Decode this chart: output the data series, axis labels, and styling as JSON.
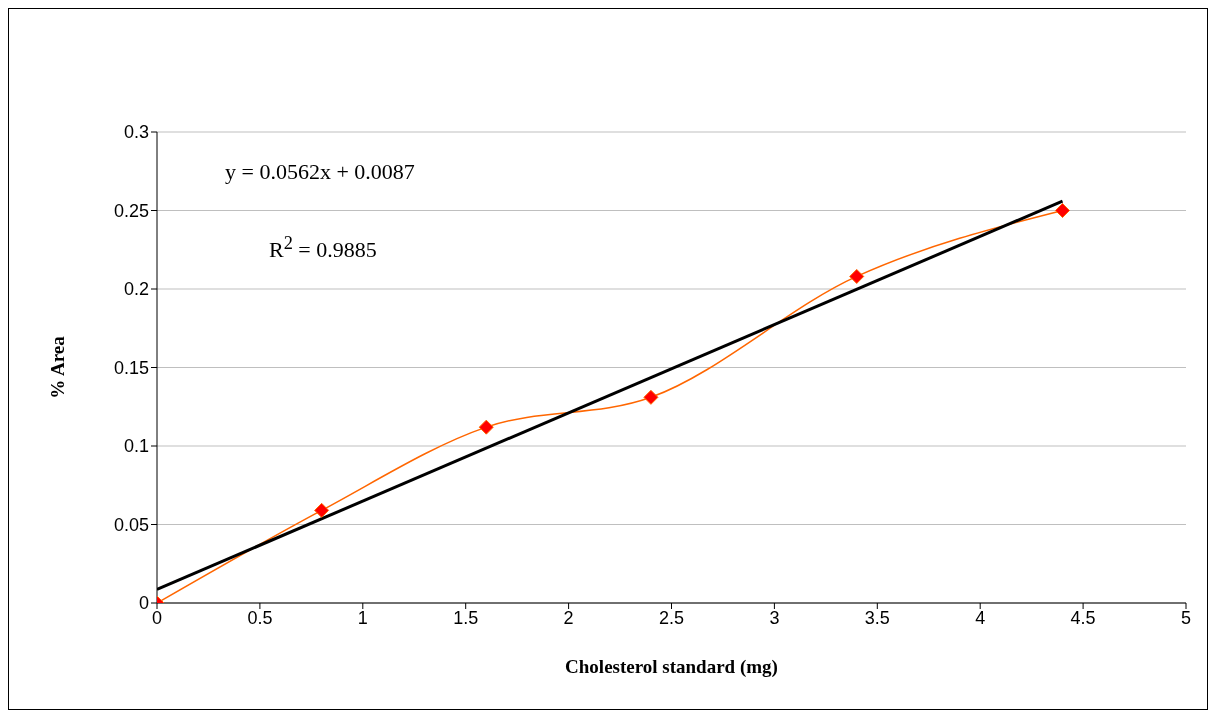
{
  "chart_data": {
    "type": "line",
    "xlabel": "Cholesterol standard (mg)",
    "ylabel": "% Area",
    "series": [
      {
        "color": "#ff6600",
        "marker": "diamond",
        "x": [
          0,
          0.8,
          1.6,
          2.4,
          3.4,
          4.4
        ],
        "values": [
          0,
          0.059,
          0.112,
          0.131,
          0.208,
          0.25
        ]
      },
      {
        "color": "#000000",
        "marker": "none",
        "x": [
          0,
          4.4
        ],
        "values": [
          0.0087,
          0.256
        ]
      }
    ],
    "xlim": [
      0,
      5
    ],
    "xticks": [
      0,
      0.5,
      1,
      1.5,
      2,
      2.5,
      3,
      3.5,
      4,
      4.5,
      5
    ],
    "ylim": [
      0,
      0.3
    ],
    "yticks": [
      0,
      0.05,
      0.1,
      0.15,
      0.2,
      0.25,
      0.3
    ],
    "grid": "y",
    "annotations": [
      "y = 0.0562x + 0.0087",
      "R$^{2}$ = 0.9885"
    ]
  }
}
